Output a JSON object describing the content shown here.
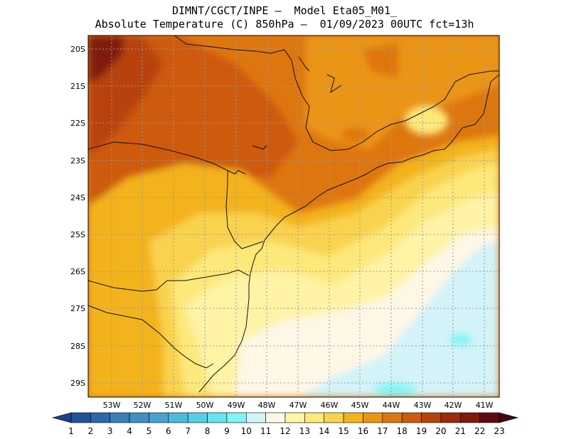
{
  "title": {
    "line1": "DIMNT/CGCT/INPE –  Model Eta05_M01_",
    "line2": "Absolute Temperature (C) 850hPa –  01/09/2023 00UTC fct=13h"
  },
  "map": {
    "lat_labels": [
      "20S",
      "21S",
      "22S",
      "23S",
      "24S",
      "25S",
      "26S",
      "27S",
      "28S",
      "29S"
    ],
    "lon_labels": [
      "53W",
      "52W",
      "51W",
      "50W",
      "49W",
      "48W",
      "47W",
      "46W",
      "45W",
      "44W",
      "43W",
      "42W",
      "41W"
    ]
  },
  "colorbar": {
    "labels": [
      "1",
      "2",
      "3",
      "4",
      "5",
      "6",
      "7",
      "8",
      "9",
      "10",
      "11",
      "12",
      "13",
      "14",
      "15",
      "16",
      "17",
      "18",
      "19",
      "20",
      "21",
      "22",
      "23"
    ],
    "colors": [
      "#1c3f8c",
      "#20529c",
      "#2a68aa",
      "#3a7eb6",
      "#3f8fc2",
      "#47a2d0",
      "#4dbbdc",
      "#56cfe6",
      "#66e3f0",
      "#7ff5f8",
      "#d3f3f9",
      "#fff7e6",
      "#fff3a6",
      "#fde87a",
      "#f9d34e",
      "#f3b31c",
      "#eb9512",
      "#de7610",
      "#cd5a0c",
      "#b8420a",
      "#9c2a0b",
      "#801a0b",
      "#5e0b10",
      "#3f0a10"
    ]
  }
}
